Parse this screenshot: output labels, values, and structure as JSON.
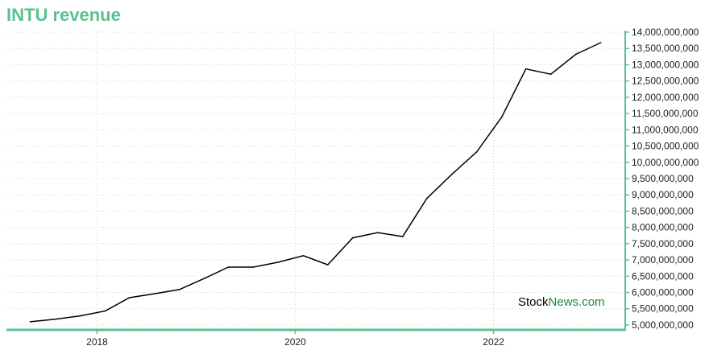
{
  "chart_data": {
    "type": "line",
    "title": "INTU revenue",
    "xlabel": "",
    "ylabel": "",
    "x_ticks": [
      "2018",
      "2020",
      "2022"
    ],
    "x_tick_years": [
      2018,
      2020,
      2022
    ],
    "y_ticks": [
      "14,000,000,000",
      "13,500,000,000",
      "13,000,000,000",
      "12,500,000,000",
      "12,000,000,000",
      "11,500,000,000",
      "11,000,000,000",
      "10,500,000,000",
      "10,000,000,000",
      "9,500,000,000",
      "9,000,000,000",
      "8,500,000,000",
      "8,000,000,000",
      "7,500,000,000",
      "7,000,000,000",
      "6,500,000,000",
      "6,000,000,000",
      "5,500,000,000",
      "5,000,000,000"
    ],
    "ylim": [
      4850000000,
      14050000000
    ],
    "xlim": [
      "2017-02-01",
      "2023-05-01"
    ],
    "grid": true,
    "y_axis_position": "right",
    "series": [
      {
        "x": [
          "2017-04-30",
          "2017-07-31",
          "2017-10-31",
          "2018-01-31",
          "2018-04-30",
          "2018-07-31",
          "2018-10-31",
          "2019-01-31",
          "2019-04-30",
          "2019-07-31",
          "2019-10-31",
          "2020-01-31",
          "2020-04-30",
          "2020-07-31",
          "2020-10-31",
          "2021-01-31",
          "2021-04-30",
          "2021-07-31",
          "2021-10-31",
          "2022-01-31",
          "2022-04-30",
          "2022-07-31",
          "2022-10-31",
          "2023-01-31"
        ],
        "values": [
          5100000000,
          5180000000,
          5280000000,
          5430000000,
          5840000000,
          5960000000,
          6090000000,
          6430000000,
          6780000000,
          6780000000,
          6930000000,
          7130000000,
          6850000000,
          7680000000,
          7840000000,
          7720000000,
          8890000000,
          9630000000,
          10320000000,
          11390000000,
          12870000000,
          12710000000,
          13320000000,
          13680000000
        ]
      }
    ],
    "colors": {
      "title": "#5ac18e",
      "axis": "#5ac18e",
      "grid": "#b7ddcb",
      "line": "#000000"
    },
    "watermark": {
      "part1": "Stock",
      "part2": "News",
      "part3": ".com",
      "color1": "#000000",
      "color2": "#1a8a3a"
    }
  }
}
